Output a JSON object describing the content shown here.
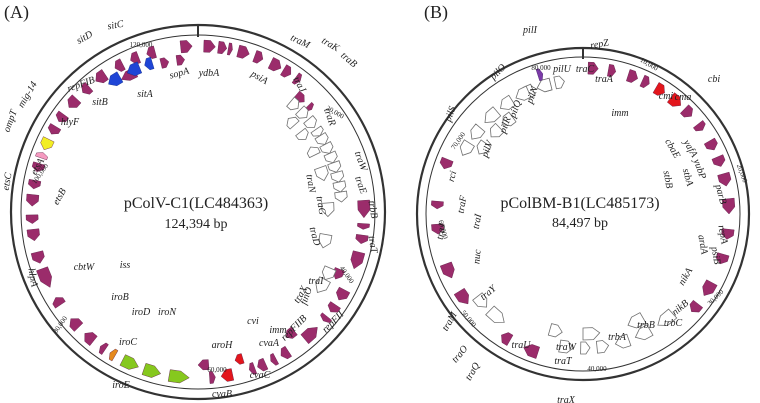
{
  "colors": {
    "magenta": "#9b2c6b",
    "outline": "#6f6f6f",
    "blue": "#1f45d6",
    "red": "#e3161c",
    "green": "#86c81e",
    "yellow": "#f2ee24",
    "pink": "#f59ac0",
    "orange": "#e58a1c",
    "purple": "#7b3aa8"
  },
  "plasmids": [
    {
      "panel": "(A)",
      "name": "pColV-C1(LC484363)",
      "size": "124,394 bp",
      "ticks": [
        "120,000",
        "20,000",
        "40,000",
        "60,000",
        "80,000",
        "100,000"
      ],
      "genes": [
        "sitC",
        "sitD",
        "sitB",
        "sitA",
        "sopA",
        "ydbA",
        "traM",
        "traK",
        "traB",
        "traJ",
        "psiA",
        "repFIB",
        "hlyF",
        "mig-14",
        "ompT",
        "etsA",
        "etsB",
        "etsC",
        "hlpA",
        "cvaA",
        "cvi",
        "aroH",
        "iroN",
        "iroD",
        "iroB",
        "iroC",
        "iroE",
        "cbtW",
        "iss",
        "traR",
        "traW",
        "traE",
        "traF",
        "trbB",
        "traG",
        "traN",
        "traT",
        "traD",
        "finO",
        "repFII",
        "repFIIB",
        "imm",
        "cvaC",
        "cvaB",
        "traI",
        "traX"
      ]
    },
    {
      "panel": "(B)",
      "name": "pColBM-B1(LC485173)",
      "size": "84,497 bp",
      "ticks": [
        "80,000",
        "10,000",
        "20,000",
        "30,000",
        "40,000",
        "50,000",
        "60,000",
        "70,000"
      ],
      "genes": [
        "pilI",
        "repZ",
        "traA",
        "traC",
        "pilU",
        "pilN",
        "pilO",
        "pilR",
        "pilQ",
        "pilV",
        "pilS",
        "rci",
        "traF",
        "traI",
        "nuc",
        "traJ",
        "traY",
        "traM",
        "traO",
        "traQ",
        "traU",
        "traW",
        "traX",
        "traT",
        "trbA",
        "trbB",
        "trbC",
        "nikB",
        "nikA",
        "repA",
        "ardA",
        "psiB",
        "parB",
        "yubP",
        "yafA",
        "cbi",
        "cmi",
        "cma",
        "cbaE",
        "imm",
        "stbA",
        "stbB"
      ]
    }
  ]
}
